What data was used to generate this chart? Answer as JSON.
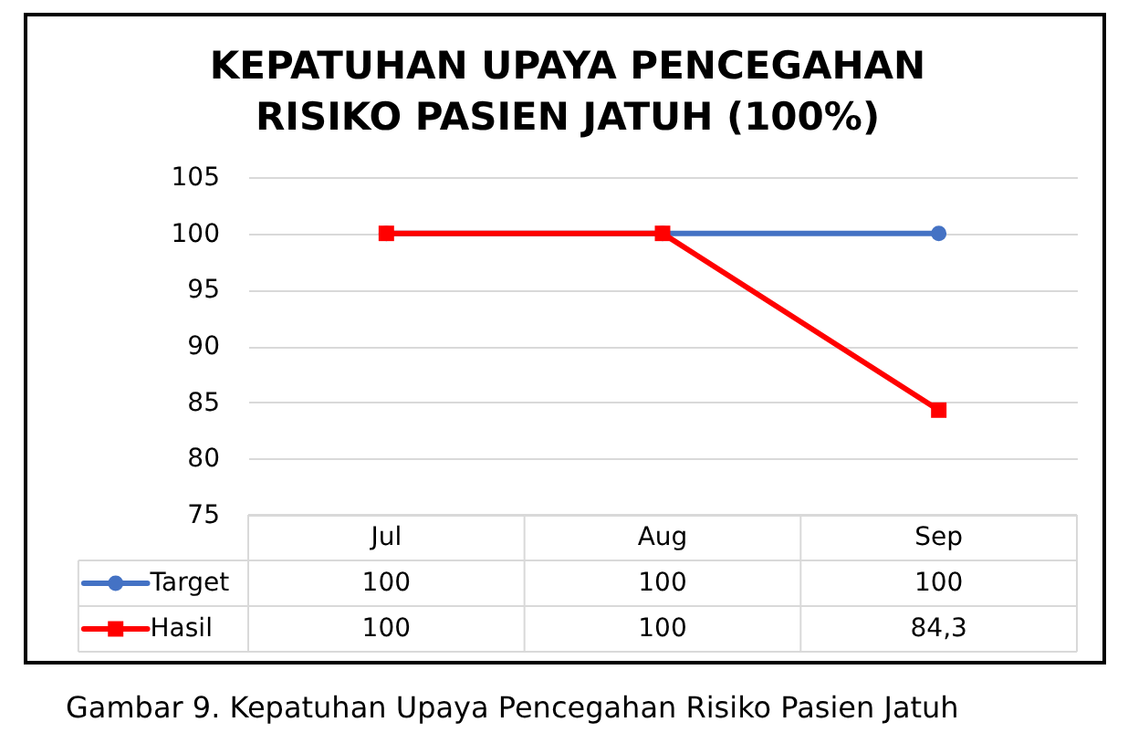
{
  "chart_data": {
    "type": "line",
    "title": "KEPATUHAN UPAYA PENCEGAHAN RISIKO PASIEN JATUH (100%)",
    "categories": [
      "Jul",
      "Aug",
      "Sep"
    ],
    "series": [
      {
        "name": "Target",
        "color": "#4472c4",
        "marker": "circle",
        "values": [
          100,
          100,
          100
        ],
        "value_labels": [
          "100",
          "100",
          "100"
        ]
      },
      {
        "name": "Hasil",
        "color": "#ff0000",
        "marker": "square",
        "values": [
          100,
          100,
          84.3
        ],
        "value_labels": [
          "100",
          "100",
          "84,3"
        ]
      }
    ],
    "ylim": [
      75,
      105
    ],
    "yticks": [
      75,
      80,
      85,
      90,
      95,
      100,
      105
    ],
    "grid": "y",
    "legend": "bottom left",
    "annotations": [
      "Gambar 9. Kepatuhan Upaya Pencegahan Risiko Pasien Jatuh"
    ]
  }
}
